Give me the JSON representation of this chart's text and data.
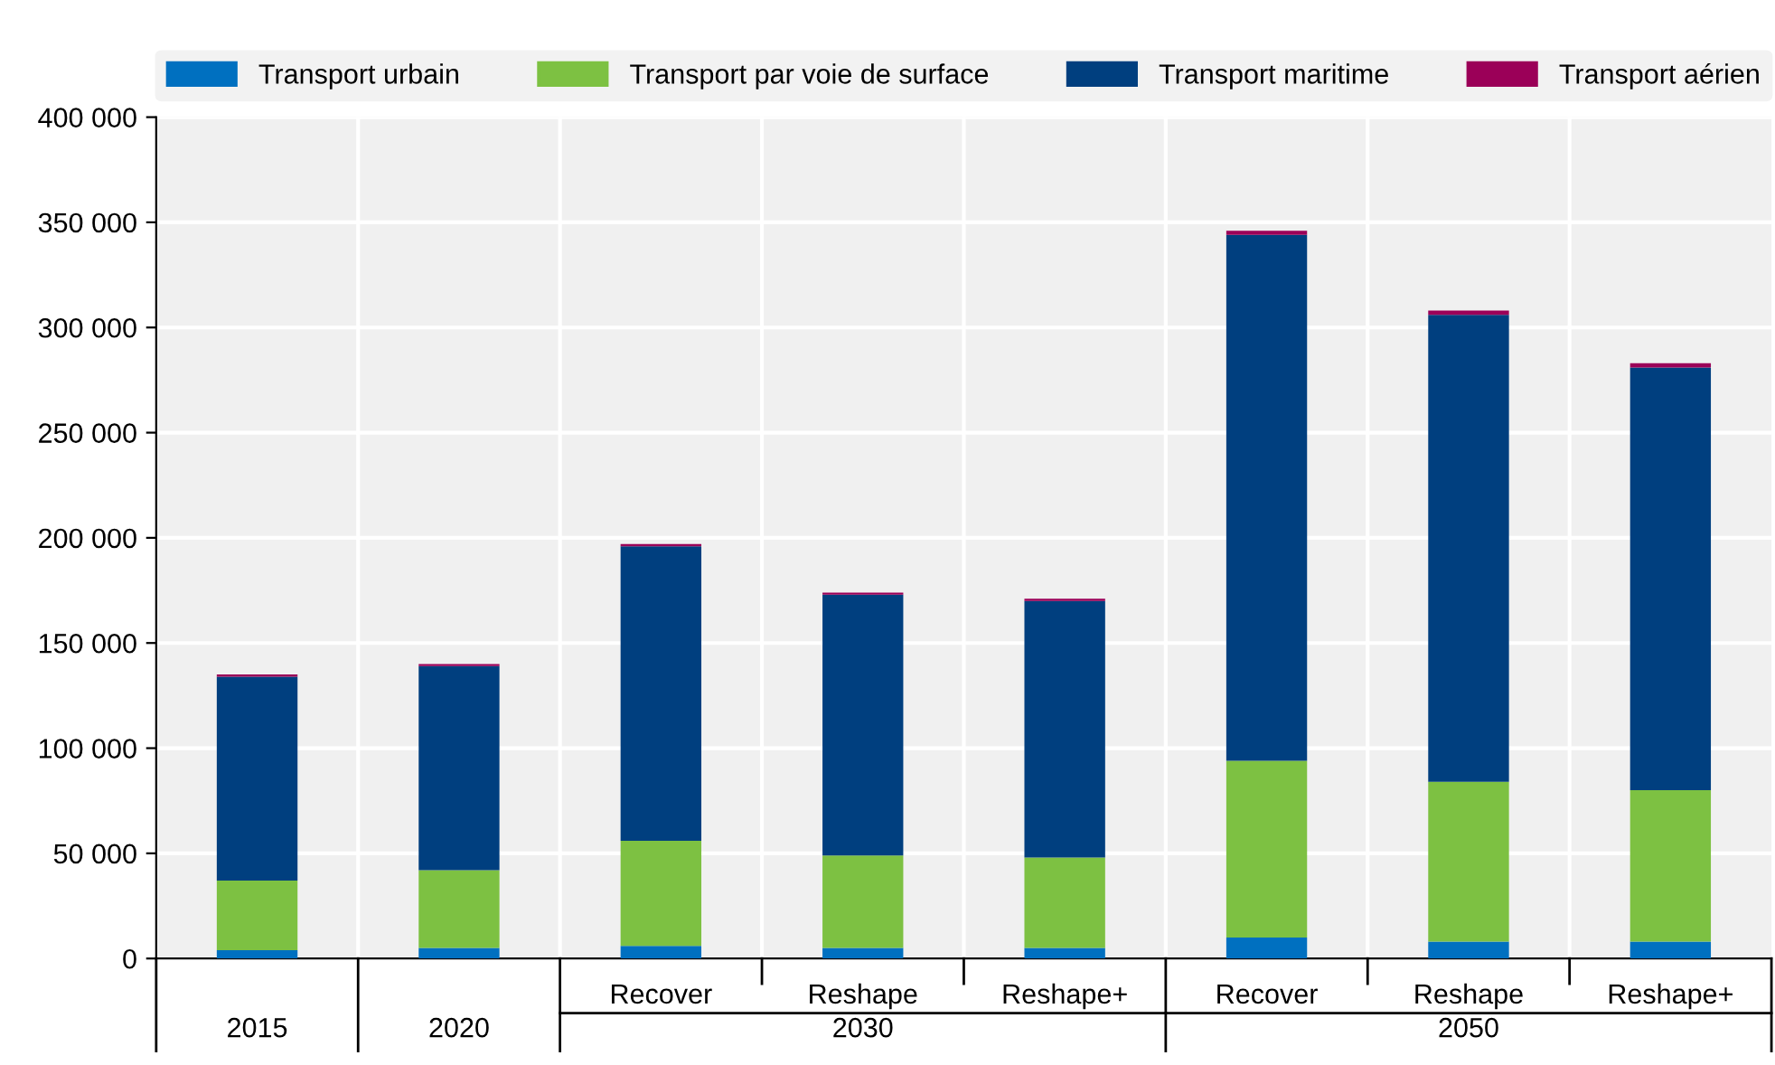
{
  "chart_data": {
    "type": "bar",
    "stacked": true,
    "categories": [
      "2015",
      "2020",
      "Recover",
      "Reshape",
      "Reshape+",
      "Recover",
      "Reshape",
      "Reshape+"
    ],
    "annotations": [
      "2030",
      "2050"
    ],
    "series": [
      {
        "name": "Transport urbain",
        "color": "#0070c0",
        "values": [
          4000,
          5000,
          6000,
          5000,
          5000,
          10000,
          8000,
          8000
        ]
      },
      {
        "name": "Transport par voie de surface",
        "color": "#7dc142",
        "values": [
          33000,
          37000,
          50000,
          44000,
          43000,
          84000,
          76000,
          72000
        ]
      },
      {
        "name": "Transport maritime",
        "color": "#003f7f",
        "values": [
          97000,
          97000,
          140000,
          124000,
          122000,
          250000,
          222000,
          201000
        ]
      },
      {
        "name": "Transport aérien",
        "color": "#9b0058",
        "values": [
          1000,
          1000,
          1000,
          1000,
          1000,
          2000,
          2000,
          2000
        ]
      }
    ],
    "ylim": [
      0,
      400000
    ],
    "yticks": [
      {
        "value": 0,
        "label": "0"
      },
      {
        "value": 50000,
        "label": "50 000"
      },
      {
        "value": 100000,
        "label": "100 000"
      },
      {
        "value": 150000,
        "label": "150 000"
      },
      {
        "value": 200000,
        "label": "200 000"
      },
      {
        "value": 250000,
        "label": "250 000"
      },
      {
        "value": 300000,
        "label": "300 000"
      },
      {
        "value": 350000,
        "label": "350 000"
      },
      {
        "value": 400000,
        "label": "400 000"
      }
    ],
    "grid": true,
    "legend": "top"
  }
}
